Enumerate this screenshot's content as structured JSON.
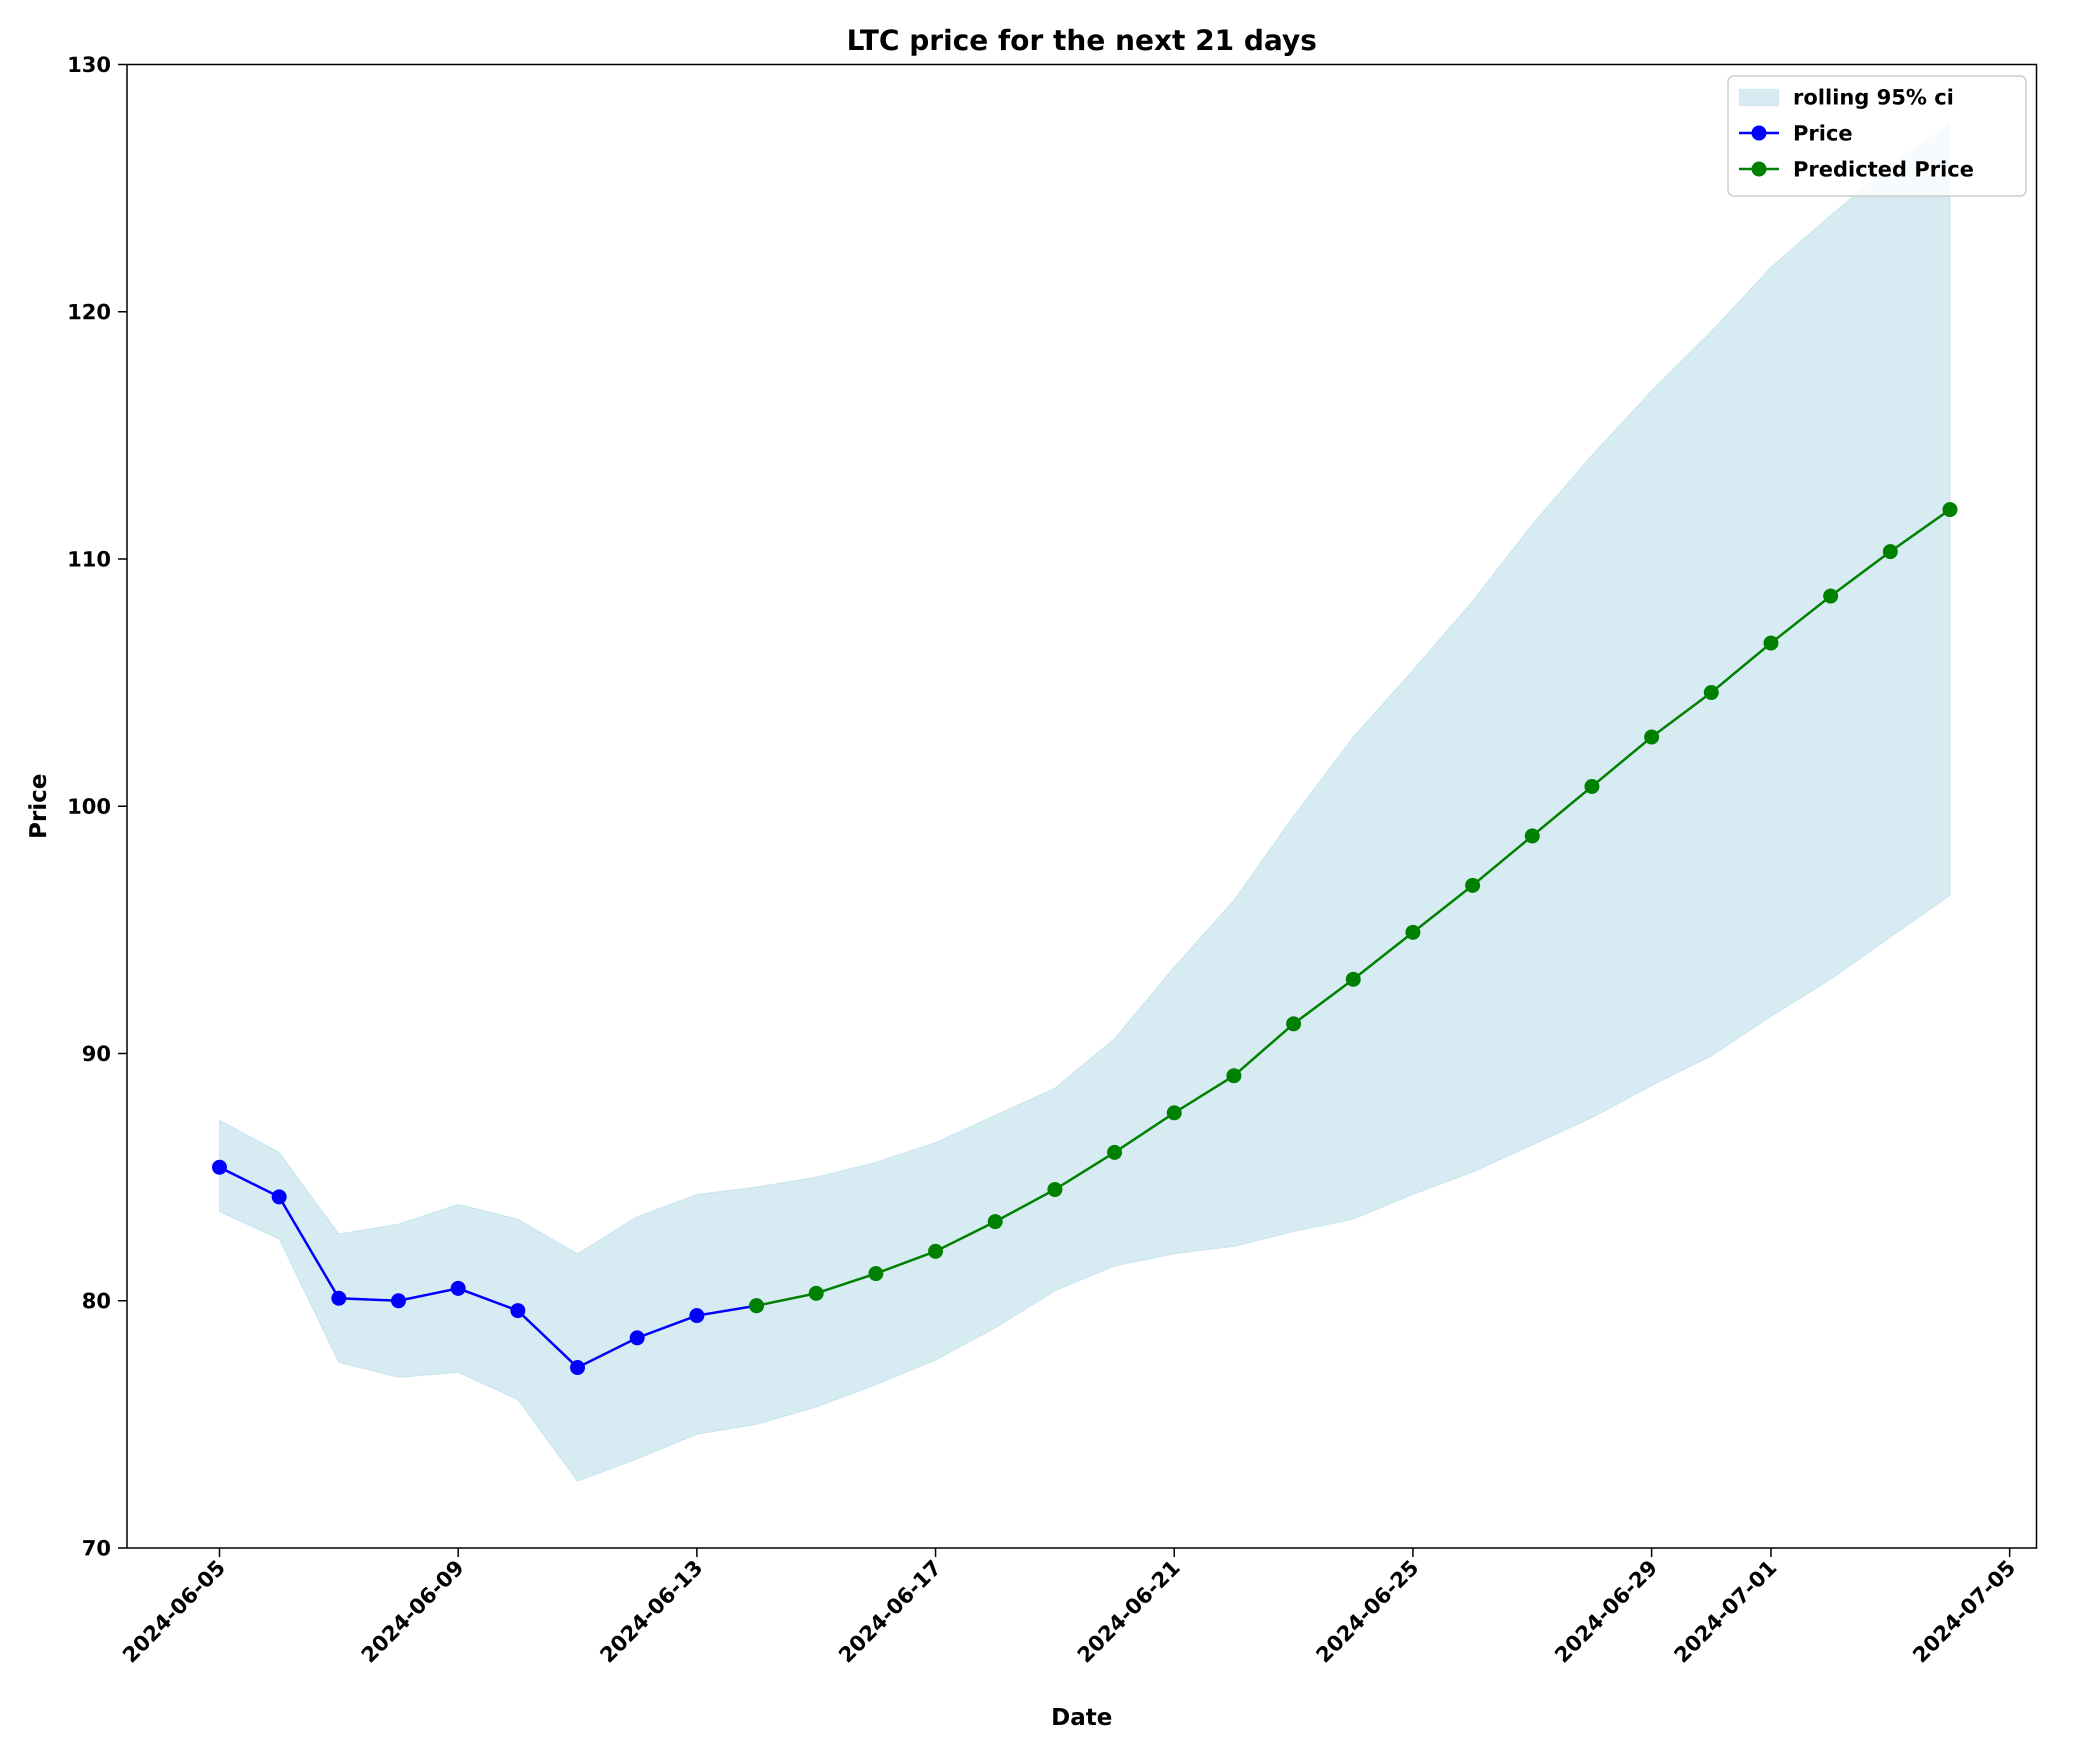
{
  "chart_data": {
    "type": "line",
    "title": "LTC price for the next 21 days",
    "xlabel": "Date",
    "ylabel": "Price",
    "ylim": [
      70,
      130
    ],
    "xlim": [
      "2024-06-04",
      "2024-07-05"
    ],
    "y_ticks": [
      70,
      80,
      90,
      100,
      110,
      120,
      130
    ],
    "x_ticks": [
      "2024-06-05",
      "2024-06-09",
      "2024-06-13",
      "2024-06-17",
      "2024-06-21",
      "2024-06-25",
      "2024-06-29",
      "2024-07-01",
      "2024-07-05"
    ],
    "legend_position": "top-right",
    "grid": false,
    "ci_band": {
      "name": "rolling 95% ci",
      "color": "#add8e6",
      "x": [
        "2024-06-05",
        "2024-06-06",
        "2024-06-07",
        "2024-06-08",
        "2024-06-09",
        "2024-06-10",
        "2024-06-11",
        "2024-06-12",
        "2024-06-13",
        "2024-06-14",
        "2024-06-15",
        "2024-06-16",
        "2024-06-17",
        "2024-06-18",
        "2024-06-19",
        "2024-06-20",
        "2024-06-21",
        "2024-06-22",
        "2024-06-23",
        "2024-06-24",
        "2024-06-25",
        "2024-06-26",
        "2024-06-27",
        "2024-06-28",
        "2024-06-29",
        "2024-06-30",
        "2024-07-01",
        "2024-07-02",
        "2024-07-03",
        "2024-07-04"
      ],
      "lower": [
        83.6,
        82.5,
        77.5,
        76.9,
        77.1,
        76.0,
        72.7,
        73.6,
        74.6,
        75.0,
        75.7,
        76.6,
        77.6,
        78.9,
        80.4,
        81.4,
        81.9,
        82.2,
        82.8,
        83.3,
        84.3,
        85.2,
        86.3,
        87.4,
        88.7,
        89.9,
        91.5,
        93.0,
        94.7,
        96.4
      ],
      "upper": [
        87.3,
        86.0,
        82.7,
        83.1,
        83.9,
        83.3,
        81.9,
        83.4,
        84.3,
        84.6,
        85.0,
        85.6,
        86.4,
        87.5,
        88.6,
        90.6,
        93.5,
        96.2,
        99.6,
        102.8,
        105.5,
        108.3,
        111.4,
        114.2,
        116.8,
        119.2,
        121.8,
        123.9,
        125.9,
        127.6
      ]
    },
    "series": [
      {
        "name": "Price",
        "color": "#0000ff",
        "x": [
          "2024-06-05",
          "2024-06-06",
          "2024-06-07",
          "2024-06-08",
          "2024-06-09",
          "2024-06-10",
          "2024-06-11",
          "2024-06-12",
          "2024-06-13",
          "2024-06-14"
        ],
        "y": [
          85.4,
          84.2,
          80.1,
          80.0,
          80.5,
          79.6,
          77.3,
          78.5,
          79.4,
          79.8
        ]
      },
      {
        "name": "Predicted Price",
        "color": "#008000",
        "x": [
          "2024-06-14",
          "2024-06-15",
          "2024-06-16",
          "2024-06-17",
          "2024-06-18",
          "2024-06-19",
          "2024-06-20",
          "2024-06-21",
          "2024-06-22",
          "2024-06-23",
          "2024-06-24",
          "2024-06-25",
          "2024-06-26",
          "2024-06-27",
          "2024-06-28",
          "2024-06-29",
          "2024-06-30",
          "2024-07-01",
          "2024-07-02",
          "2024-07-03",
          "2024-07-04"
        ],
        "y": [
          79.8,
          80.3,
          81.1,
          82.0,
          83.2,
          84.5,
          86.0,
          87.6,
          89.1,
          91.2,
          93.0,
          94.9,
          96.8,
          98.8,
          100.8,
          102.8,
          104.6,
          106.6,
          108.5,
          110.3,
          112.0
        ]
      }
    ]
  }
}
